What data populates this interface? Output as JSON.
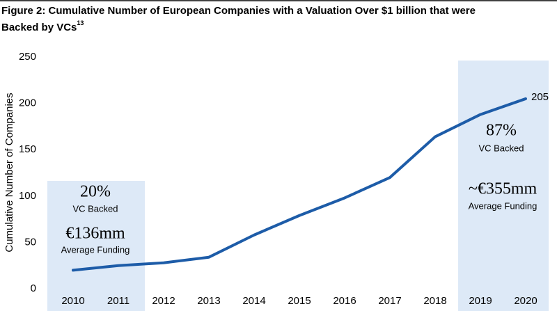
{
  "chart_data": {
    "type": "line",
    "title": "Figure 2: Cumulative Number of European Companies with a Valuation Over $1 billion that were",
    "title_line2": "Backed by VCs",
    "title_footnote": "13",
    "y_label": "Cumulative Number of Companies",
    "categories": [
      "2010",
      "2011",
      "2012",
      "2013",
      "2014",
      "2015",
      "2016",
      "2017",
      "2018",
      "2019",
      "2020"
    ],
    "values": [
      20,
      25,
      28,
      34,
      58,
      79,
      98,
      120,
      164,
      188,
      205
    ],
    "color": "#1d5ca8",
    "ylim": [
      0,
      250
    ],
    "yticks": [
      0,
      50,
      100,
      150,
      200,
      250
    ],
    "grid": false,
    "annotations": [
      {
        "percent": "20%",
        "percent_label": "VC Backed",
        "funding": "€136mm",
        "funding_label": "Average Funding"
      },
      {
        "percent": "87%",
        "percent_label": "VC Backed",
        "funding": "~€355mm",
        "funding_label": "Average Funding"
      }
    ]
  }
}
